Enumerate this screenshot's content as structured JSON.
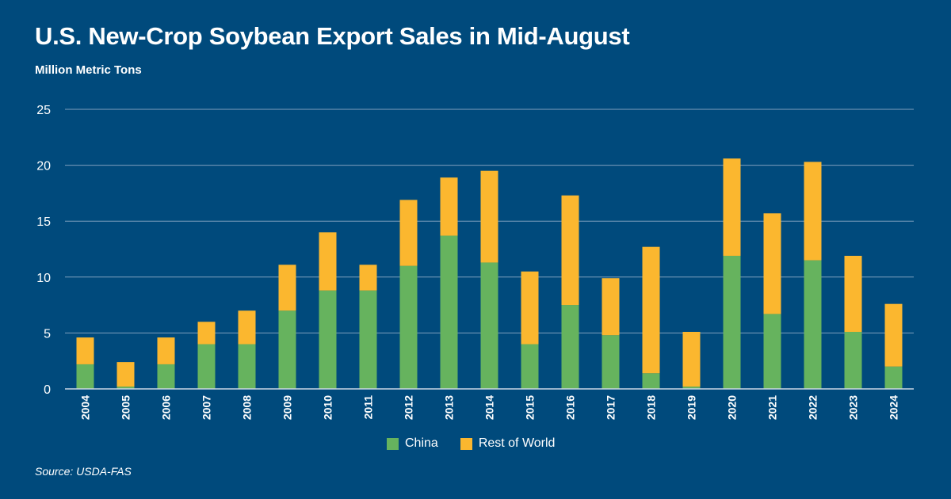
{
  "title": "U.S. New-Crop Soybean Export Sales in Mid-August",
  "source": "Source: USDA-FAS",
  "colors": {
    "background": "#004a7c",
    "china": "#66b35e",
    "rest_of_world": "#fbb72f",
    "grid": "#7e9fbd"
  },
  "chart_data": {
    "type": "bar",
    "stacked": true,
    "title": "U.S. New-Crop Soybean Export Sales in Mid-August",
    "ylabel": "Million Metric Tons",
    "xlabel": "",
    "ylim": [
      0,
      25
    ],
    "yticks": [
      0,
      5,
      10,
      15,
      20,
      25
    ],
    "grid": true,
    "legend_position": "bottom-center",
    "categories": [
      "2004",
      "2005",
      "2006",
      "2007",
      "2008",
      "2009",
      "2010",
      "2011",
      "2012",
      "2013",
      "2014",
      "2015",
      "2016",
      "2017",
      "2018",
      "2019",
      "2020",
      "2021",
      "2022",
      "2023",
      "2024"
    ],
    "series": [
      {
        "name": "China",
        "color": "#66b35e",
        "values": [
          2.2,
          0.2,
          2.2,
          4.0,
          4.0,
          7.0,
          8.8,
          8.8,
          11.0,
          13.7,
          11.3,
          4.0,
          7.5,
          4.8,
          1.4,
          0.2,
          11.9,
          6.7,
          11.5,
          5.1,
          2.0
        ]
      },
      {
        "name": "Rest of World",
        "color": "#fbb72f",
        "values": [
          2.4,
          2.2,
          2.4,
          2.0,
          3.0,
          4.1,
          5.2,
          2.3,
          5.9,
          5.2,
          8.2,
          6.5,
          9.8,
          5.1,
          11.3,
          4.9,
          8.7,
          9.0,
          8.8,
          6.8,
          5.6
        ]
      }
    ]
  }
}
